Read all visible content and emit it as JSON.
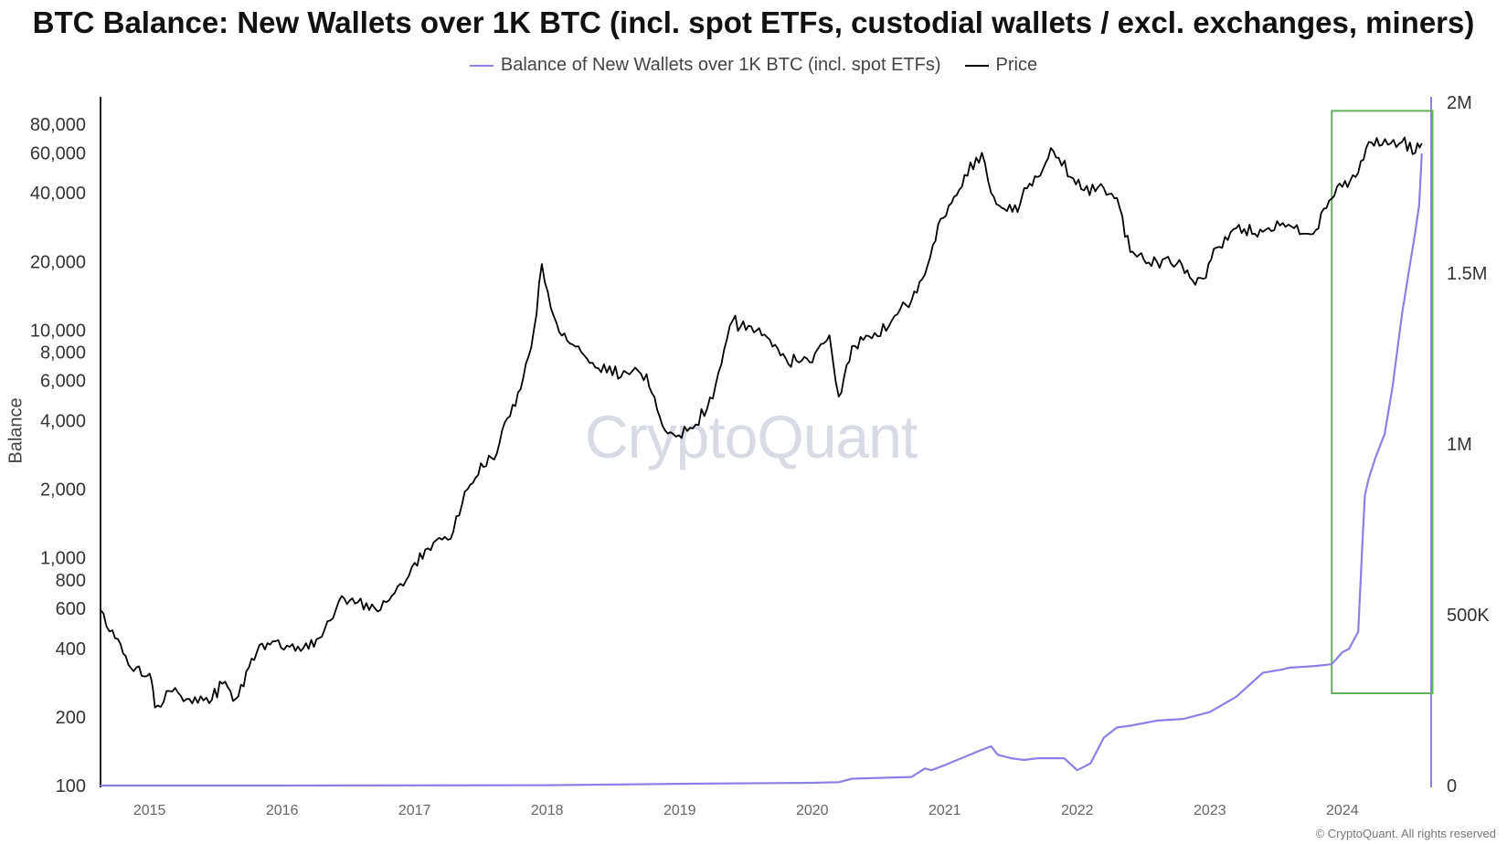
{
  "title": "BTC Balance: New Wallets over 1K BTC (incl. spot ETFs, custodial wallets / excl. exchanges, miners)",
  "watermark": "CryptoQuant",
  "copyright": "© CryptoQuant. All rights reserved",
  "colors": {
    "price": "#000000",
    "balance": "#8b80e6",
    "highlight": "#5fb35a",
    "axis": "#222222"
  },
  "chart_data": {
    "type": "line",
    "ylabel": "Balance",
    "x_tick_labels": [
      "2015",
      "2016",
      "2017",
      "2018",
      "2019",
      "2020",
      "2021",
      "2022",
      "2023",
      "2024"
    ],
    "x_range": [
      2014.63,
      2024.67
    ],
    "left_axis": {
      "scale": "log",
      "range": [
        100,
        100000
      ],
      "tick_labels": [
        "80,000",
        "60,000",
        "40,000",
        "20,000",
        "10,000",
        "8,000",
        "6,000",
        "4,000",
        "2,000",
        "1,000",
        "800",
        "600",
        "400",
        "200",
        "100"
      ],
      "tick_values": [
        80000,
        60000,
        40000,
        20000,
        10000,
        8000,
        6000,
        4000,
        2000,
        1000,
        800,
        600,
        400,
        200,
        100
      ]
    },
    "right_axis": {
      "scale": "linear",
      "range": [
        0,
        2000000
      ],
      "tick_labels": [
        "2M",
        "1.5M",
        "1M",
        "500K",
        "0"
      ],
      "tick_values": [
        2000000,
        1500000,
        1000000,
        500000,
        0
      ]
    },
    "highlight_box": {
      "x": [
        2023.92,
        2024.68
      ],
      "y_right": [
        270000,
        1975000
      ]
    },
    "series": [
      {
        "name": "Price",
        "axis": "left",
        "color": "#000000",
        "x": [
          2014.63,
          2014.72,
          2014.8,
          2014.9,
          2015.0,
          2015.04,
          2015.15,
          2015.3,
          2015.45,
          2015.55,
          2015.65,
          2015.75,
          2015.85,
          2015.95,
          2016.1,
          2016.3,
          2016.45,
          2016.55,
          2016.7,
          2016.85,
          2017.0,
          2017.1,
          2017.25,
          2017.4,
          2017.5,
          2017.6,
          2017.7,
          2017.8,
          2017.9,
          2017.96,
          2018.05,
          2018.15,
          2018.3,
          2018.45,
          2018.6,
          2018.75,
          2018.87,
          2018.95,
          2019.1,
          2019.25,
          2019.4,
          2019.5,
          2019.6,
          2019.8,
          2019.9,
          2020.0,
          2020.13,
          2020.2,
          2020.3,
          2020.45,
          2020.6,
          2020.75,
          2020.85,
          2020.95,
          2021.05,
          2021.15,
          2021.28,
          2021.35,
          2021.45,
          2021.55,
          2021.6,
          2021.7,
          2021.8,
          2021.86,
          2021.95,
          2022.05,
          2022.2,
          2022.3,
          2022.4,
          2022.45,
          2022.5,
          2022.6,
          2022.75,
          2022.87,
          2022.95,
          2023.05,
          2023.2,
          2023.4,
          2023.55,
          2023.7,
          2023.8,
          2023.9,
          2024.0,
          2024.1,
          2024.2,
          2024.3,
          2024.45,
          2024.55,
          2024.6
        ],
        "y": [
          590,
          480,
          380,
          330,
          310,
          220,
          260,
          240,
          230,
          280,
          240,
          330,
          420,
          430,
          390,
          450,
          680,
          630,
          600,
          700,
          950,
          1100,
          1200,
          2000,
          2600,
          2700,
          4100,
          5500,
          10000,
          19500,
          11500,
          9000,
          7500,
          6500,
          6500,
          6400,
          3800,
          3500,
          3700,
          5000,
          11000,
          10000,
          10200,
          7500,
          7200,
          7200,
          9500,
          5100,
          8500,
          9200,
          11000,
          13500,
          17500,
          29000,
          36000,
          48000,
          60000,
          40000,
          34000,
          33000,
          42000,
          47000,
          63000,
          57000,
          47000,
          41000,
          42000,
          38000,
          22000,
          21000,
          20500,
          20000,
          19500,
          16500,
          16800,
          23000,
          28000,
          27000,
          29500,
          26500,
          27500,
          37000,
          42500,
          47000,
          67000,
          65000,
          67000,
          60000,
          66000
        ]
      },
      {
        "name": "Balance of New Wallets over 1K BTC (incl. spot ETFs)",
        "axis": "right",
        "color": "#8b80e6",
        "x": [
          2014.63,
          2016.0,
          2018.0,
          2019.0,
          2020.0,
          2020.2,
          2020.3,
          2020.75,
          2020.85,
          2020.9,
          2021.0,
          2021.25,
          2021.35,
          2021.4,
          2021.5,
          2021.6,
          2021.7,
          2021.9,
          2022.0,
          2022.1,
          2022.2,
          2022.3,
          2022.4,
          2022.6,
          2022.8,
          2023.0,
          2023.2,
          2023.4,
          2023.55,
          2023.6,
          2023.8,
          2023.92,
          2024.0,
          2024.05,
          2024.12,
          2024.15,
          2024.17,
          2024.2,
          2024.25,
          2024.32,
          2024.38,
          2024.45,
          2024.5,
          2024.55,
          2024.58,
          2024.6
        ],
        "y": [
          0,
          0,
          1000,
          5000,
          8000,
          10000,
          20000,
          25000,
          50000,
          45000,
          60000,
          100000,
          115000,
          90000,
          80000,
          75000,
          80000,
          80000,
          45000,
          65000,
          140000,
          170000,
          175000,
          190000,
          195000,
          215000,
          260000,
          330000,
          340000,
          345000,
          350000,
          355000,
          390000,
          400000,
          450000,
          700000,
          850000,
          900000,
          960000,
          1030000,
          1170000,
          1380000,
          1500000,
          1620000,
          1700000,
          1850000
        ]
      }
    ]
  }
}
